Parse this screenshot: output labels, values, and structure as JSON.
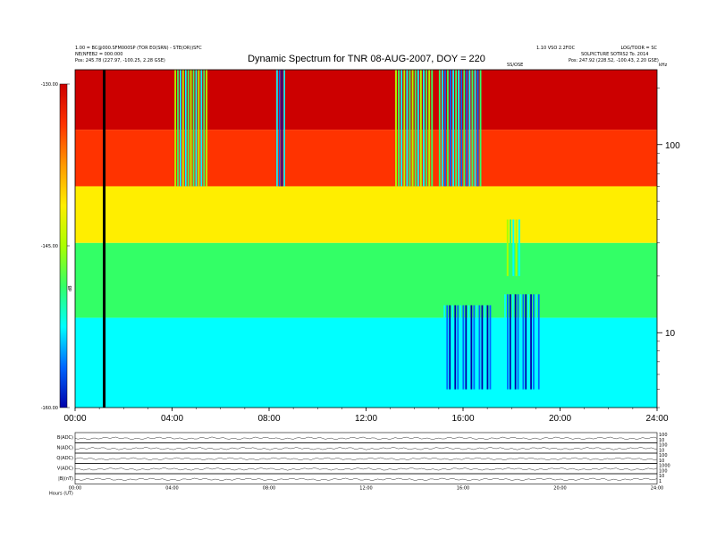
{
  "header": {
    "title": "Dynamic Spectrum for TNR 08-AUG-2007, DOY = 220",
    "left_line1": "1.00 = BC@000.SFM000SP (TOR EO(SRN) - STE(OR))SFC",
    "left_line2": "NE(NFEB2 = 000:000",
    "left_line3": "Pos:   245.78 (227.97, -100.25, 2.28 GSE)",
    "right_mid": "1.10 VSO 2.2FOC",
    "right_far": "LOG/TOOR = SC",
    "right_line2": "SOLPICTURE SOTRS2 To. 2014",
    "right_line3": "Pos:   247.92 (228.52, -100.43, 2.20 GSE)",
    "center_marker": "SS/OSE",
    "unit_label": "kHz"
  },
  "colorbar": {
    "ticks": [
      "-130.00",
      "-145.00",
      "-160.00"
    ],
    "label": "dB",
    "colors": [
      "#cc0000",
      "#ff3300",
      "#ff9900",
      "#ffee00",
      "#aaff00",
      "#33ff66",
      "#00ffff",
      "#0066ff",
      "#0000aa"
    ]
  },
  "chart_data": {
    "type": "heatmap",
    "title": "Dynamic Spectrum for TNR 08-AUG-2007, DOY = 220",
    "x_ticks": [
      "00:00",
      "04:00",
      "08:00",
      "12:00",
      "16:00",
      "20:00",
      "24:00"
    ],
    "x_range_hours": [
      0,
      24
    ],
    "y_scale": "log",
    "y_ticks": [
      "100",
      "10"
    ],
    "y_tick_values": [
      100,
      10
    ],
    "y_range_khz": [
      4,
      250
    ],
    "colorscale_db": [
      -160,
      -130
    ],
    "data_gap_marker_hour": 1.2,
    "bands": [
      {
        "khz": [
          120,
          250
        ],
        "db": -128
      },
      {
        "khz": [
          60,
          120
        ],
        "db": -133
      },
      {
        "khz": [
          30,
          60
        ],
        "db": -140
      },
      {
        "khz": [
          12,
          30
        ],
        "db": -147
      },
      {
        "khz": [
          4,
          12
        ],
        "db": -152
      }
    ],
    "bursts": [
      {
        "hours": [
          4.1,
          5.5
        ],
        "khz": [
          60,
          250
        ],
        "db": -150
      },
      {
        "hours": [
          8.3,
          8.7
        ],
        "khz": [
          60,
          250
        ],
        "db": -157
      },
      {
        "hours": [
          13.2,
          14.8
        ],
        "khz": [
          60,
          250
        ],
        "db": -150
      },
      {
        "hours": [
          15.0,
          16.8
        ],
        "khz": [
          60,
          250
        ],
        "db": -152
      },
      {
        "hours": [
          15.2,
          17.2
        ],
        "khz": [
          5,
          14
        ],
        "db": -157
      },
      {
        "hours": [
          17.7,
          19.2
        ],
        "khz": [
          5,
          16
        ],
        "db": -158
      },
      {
        "hours": [
          17.8,
          18.4
        ],
        "khz": [
          20,
          40
        ],
        "db": -150
      }
    ],
    "panels": [
      {
        "label": "B(ADC)",
        "right_ticks": [
          "100",
          "10"
        ]
      },
      {
        "label": "N(ADC)",
        "right_ticks": [
          "100",
          "10"
        ]
      },
      {
        "label": "Q(ADC)",
        "right_ticks": [
          "100",
          "10"
        ]
      },
      {
        "label": "V(ADC)",
        "right_ticks": [
          "1000",
          "100"
        ]
      },
      {
        "label": "|B|(nT)",
        "right_ticks": [
          "10",
          "1"
        ]
      }
    ],
    "panel_x_ticks": [
      "00:00",
      "04:00",
      "08:00",
      "12:00",
      "16:00",
      "20:00",
      "24:00"
    ],
    "panel_x_unit": "Hours   (UT)"
  }
}
